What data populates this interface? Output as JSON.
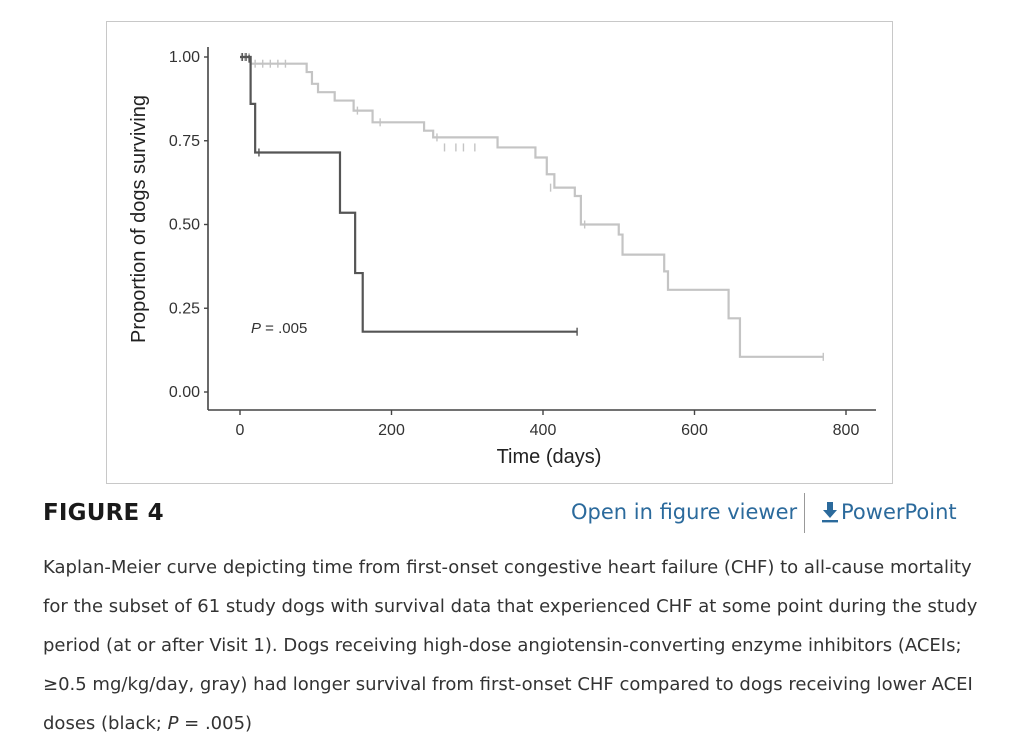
{
  "figure": {
    "label": "FIGURE 4",
    "viewer_link": "Open in figure viewer",
    "powerpoint_link": "PowerPoint",
    "icon": "download-icon",
    "caption": {
      "part1": "Kaplan-Meier curve depicting time from first-onset congestive heart failure (CHF) to all-cause mortality for the subset of 61 study dogs with survival data that experienced CHF at some point during the study period (at or after Visit 1). Dogs receiving high-dose angiotensin-converting enzyme inhibitors (ACEIs; ≥0.5 mg/kg/day, gray) had longer survival from first-onset CHF compared to dogs receiving lower ACEI doses (black; ",
      "p_symbol": "P",
      "part2": " = .005)"
    }
  },
  "chart_data": {
    "type": "line",
    "xlabel": "Time (days)",
    "ylabel": "Proportion of dogs surviving",
    "xlim": [
      -35,
      830
    ],
    "ylim": [
      0,
      1
    ],
    "xticks": [
      0,
      200,
      400,
      600,
      800
    ],
    "yticks": [
      0.0,
      0.25,
      0.5,
      0.75,
      1.0
    ],
    "ytick_labels": [
      "0.00",
      "0.25",
      "0.50",
      "0.75",
      "1.00"
    ],
    "annotation": {
      "symbol": "P",
      "text": " = .005"
    },
    "grid": false,
    "series": [
      {
        "color": "#c4c4c4",
        "steps": [
          [
            0,
            1.0
          ],
          [
            14,
            0.98
          ],
          [
            88,
            0.955
          ],
          [
            95,
            0.92
          ],
          [
            103,
            0.895
          ],
          [
            125,
            0.87
          ],
          [
            150,
            0.84
          ],
          [
            175,
            0.805
          ],
          [
            243,
            0.78
          ],
          [
            255,
            0.76
          ],
          [
            340,
            0.73
          ],
          [
            390,
            0.7
          ],
          [
            405,
            0.65
          ],
          [
            415,
            0.61
          ],
          [
            442,
            0.585
          ],
          [
            450,
            0.5
          ],
          [
            500,
            0.47
          ],
          [
            505,
            0.41
          ],
          [
            560,
            0.36
          ],
          [
            565,
            0.305
          ],
          [
            645,
            0.22
          ],
          [
            660,
            0.105
          ],
          [
            770,
            0.105
          ]
        ],
        "censored": [
          [
            2,
            1.0
          ],
          [
            6,
            1.0
          ],
          [
            12,
            1.0
          ],
          [
            20,
            0.98
          ],
          [
            30,
            0.98
          ],
          [
            40,
            0.98
          ],
          [
            50,
            0.98
          ],
          [
            60,
            0.98
          ],
          [
            155,
            0.84
          ],
          [
            185,
            0.805
          ],
          [
            260,
            0.76
          ],
          [
            270,
            0.73
          ],
          [
            285,
            0.73
          ],
          [
            295,
            0.73
          ],
          [
            310,
            0.73
          ],
          [
            410,
            0.61
          ],
          [
            455,
            0.5
          ],
          [
            770,
            0.105
          ]
        ]
      },
      {
        "color": "#555555",
        "steps": [
          [
            0,
            1.0
          ],
          [
            14,
            0.86
          ],
          [
            20,
            0.715
          ],
          [
            132,
            0.535
          ],
          [
            152,
            0.355
          ],
          [
            162,
            0.18
          ],
          [
            445,
            0.18
          ]
        ],
        "censored": [
          [
            3,
            1.0
          ],
          [
            8,
            1.0
          ],
          [
            12,
            0.995
          ],
          [
            25,
            0.715
          ],
          [
            445,
            0.18
          ]
        ]
      }
    ]
  }
}
